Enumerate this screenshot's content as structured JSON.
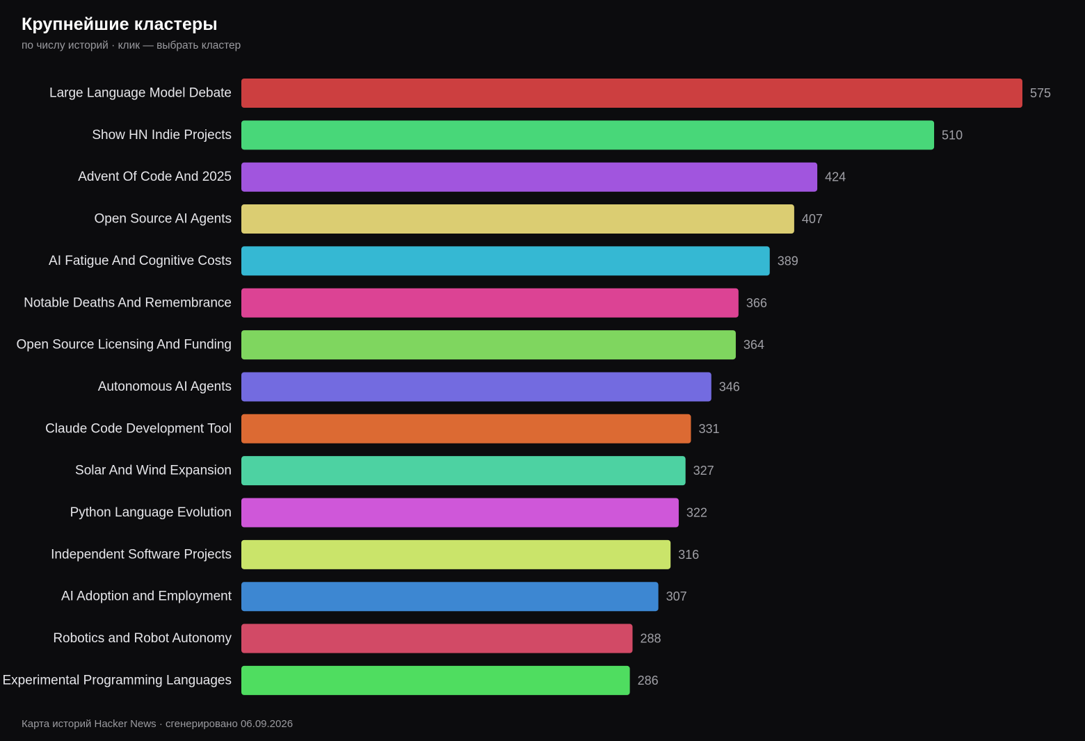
{
  "header": {
    "title": "Крупнейшие кластеры",
    "subtitle": "по числу историй · клик — выбрать кластер"
  },
  "footer": {
    "text": "Карта историй Hacker News · сгенерировано 06.09.2026"
  },
  "colors": {
    "background": "#0c0c0e",
    "category_text": "#e6e6ea",
    "value_text": "#a0a0a6"
  },
  "chart_data": {
    "type": "bar",
    "orientation": "horizontal",
    "categories": [
      "Large Language Model Debate",
      "Show HN Indie Projects",
      "Advent Of Code And 2025",
      "Open Source AI Agents",
      "AI Fatigue And Cognitive Costs",
      "Notable Deaths And Remembrance",
      "Open Source Licensing And Funding",
      "Autonomous AI Agents",
      "Claude Code Development Tool",
      "Solar And Wind Expansion",
      "Python Language Evolution",
      "Independent Software Projects",
      "AI Adoption and Employment",
      "Robotics and Robot Autonomy",
      "Experimental Programming Languages"
    ],
    "values": [
      575,
      510,
      424,
      407,
      389,
      366,
      364,
      346,
      331,
      327,
      322,
      316,
      307,
      288,
      286
    ],
    "value_labels": [
      "575",
      "510",
      "424",
      "407",
      "389",
      "366",
      "364",
      "346",
      "331",
      "327",
      "322",
      "316",
      "307",
      "288",
      "286"
    ],
    "bar_colors": [
      "#cc3f40",
      "#48d779",
      "#a155de",
      "#dbcd72",
      "#35b8d3",
      "#dc4394",
      "#7fd65f",
      "#736be0",
      "#dc6a33",
      "#4dd2a2",
      "#cf57d9",
      "#cae46a",
      "#3d87d2",
      "#d24a66",
      "#4fdd60"
    ],
    "xlim": [
      0,
      575
    ],
    "sort": "descending",
    "grid": false,
    "legend": "none"
  }
}
